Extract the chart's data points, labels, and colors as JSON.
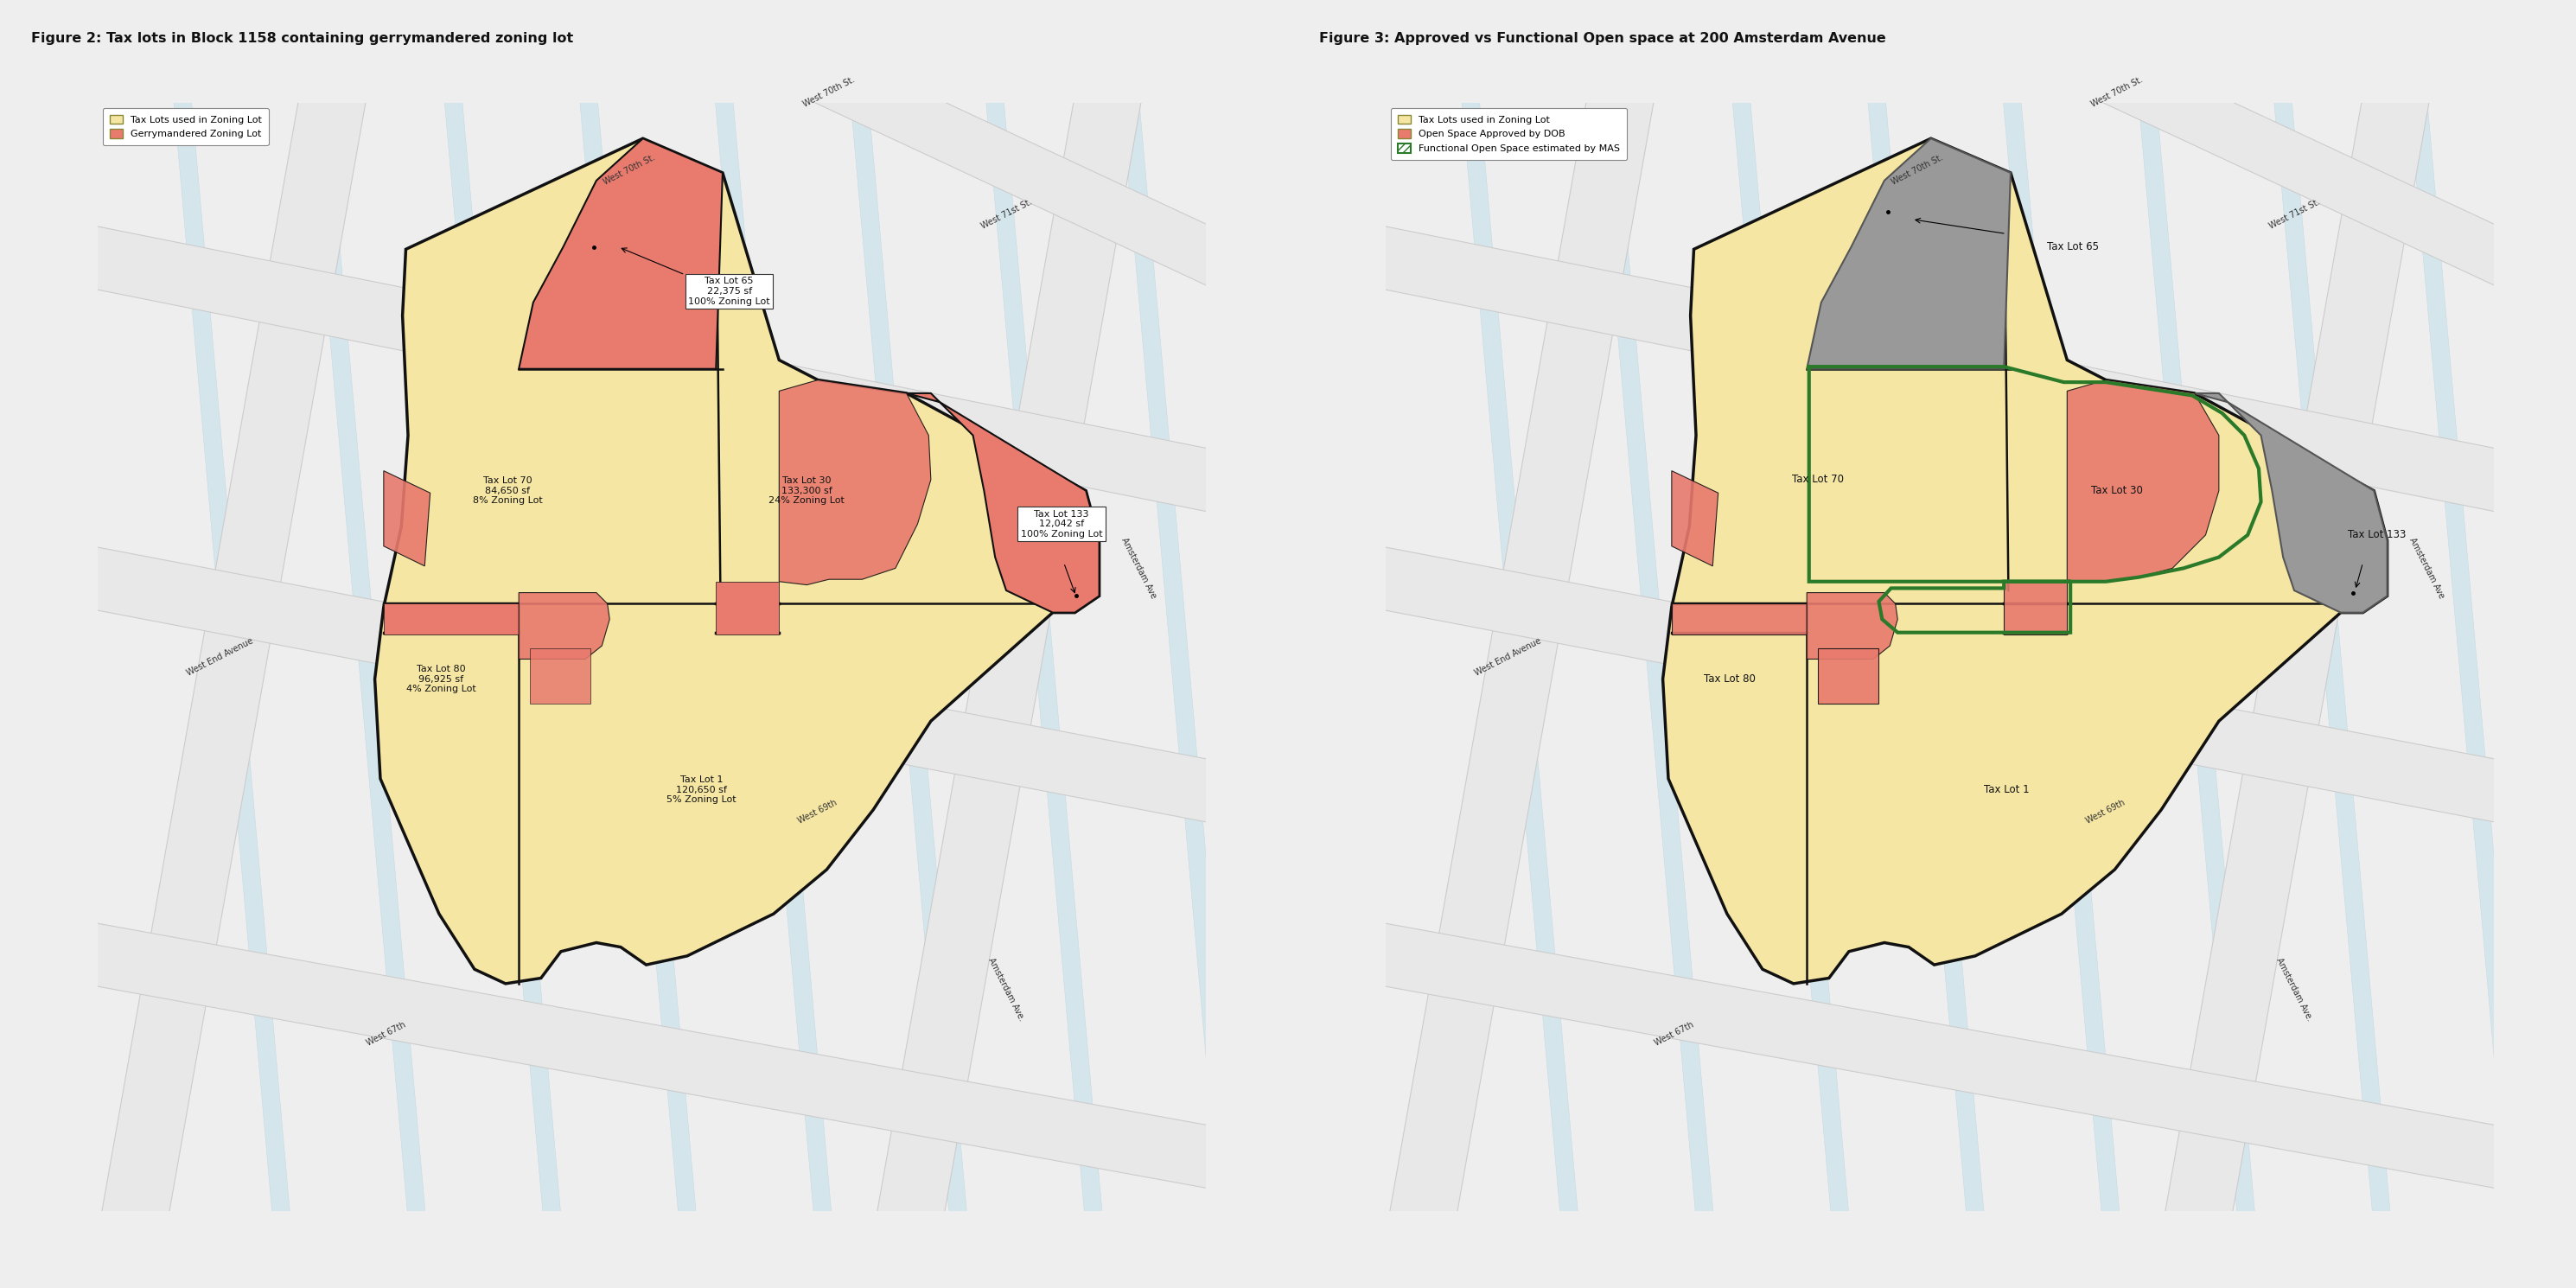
{
  "bg_color": "#eeeeee",
  "map_bg": "#add8e8",
  "street_color": "#e8e8e8",
  "street_outline": "#cccccc",
  "block_bg": "#c5dce8",
  "tax_lot_fill": "#f5e6a3",
  "tax_lot_edge": "#111111",
  "gerrymander_fill": "#e87a6e",
  "gerrymander_edge": "#111111",
  "gray_fill": "#999999",
  "gray_edge": "#555555",
  "green_edge": "#2a7a2a",
  "open_space_fill": "#e87a6e",
  "panel_bg": "#ffffff",
  "figure1_title": "Figure 2: Tax lots in Block 1158 containing gerrymandered zoning lot",
  "figure2_title": "Figure 3: Approved vs Functional Open space at 200 Amsterdam Avenue",
  "legend1": [
    {
      "label": "Tax Lots used in Zoning Lot",
      "color": "#f5e6a3",
      "edge": "#888833"
    },
    {
      "label": "Gerrymandered Zoning Lot",
      "color": "#e87a6e",
      "edge": "#888833"
    }
  ],
  "legend2": [
    {
      "label": "Tax Lots used in Zoning Lot",
      "color": "#f5e6a3",
      "edge": "#888833"
    },
    {
      "label": "Open Space Approved by DOB",
      "color": "#e87a6e",
      "edge": "#888833"
    },
    {
      "label": "Functional Open Space estimated by MAS",
      "color": "#ffffff",
      "edge": "#2a7a2a",
      "hatch": "////"
    }
  ]
}
